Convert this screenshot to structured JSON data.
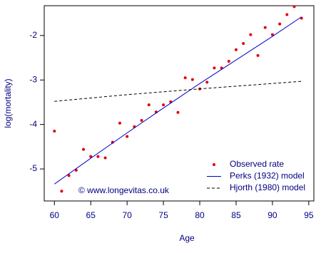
{
  "chart_data": {
    "type": "line",
    "xlabel": "Age",
    "ylabel": "log(mortality)",
    "annotation": "© www.longevitas.co.uk",
    "xlim": [
      58.6,
      95.7
    ],
    "ylim": [
      -5.72,
      -1.33
    ],
    "xticks": [
      60,
      65,
      70,
      75,
      80,
      85,
      90,
      95
    ],
    "yticks": [
      -5,
      -4,
      -3,
      -2
    ],
    "legend": "bottomright",
    "axis_color": "#000080",
    "series": [
      {
        "name": "Observed rate",
        "style": "points",
        "color": "#e00000",
        "x": [
          60,
          61,
          62,
          63,
          64,
          65,
          66,
          67,
          68,
          69,
          70,
          71,
          72,
          73,
          74,
          75,
          76,
          77,
          78,
          79,
          80,
          81,
          82,
          83,
          84,
          85,
          86,
          87,
          88,
          89,
          90,
          91,
          92,
          93,
          94
        ],
        "values": [
          -4.15,
          -5.5,
          -5.15,
          -5.03,
          -4.56,
          -4.72,
          -4.72,
          -4.75,
          -4.4,
          -3.97,
          -4.27,
          -4.05,
          -3.91,
          -3.56,
          -3.72,
          -3.56,
          -3.49,
          -3.73,
          -2.95,
          -2.99,
          -3.2,
          -3.05,
          -2.73,
          -2.73,
          -2.58,
          -2.32,
          -2.18,
          -1.98,
          -2.45,
          -1.82,
          -1.98,
          -1.74,
          -1.53,
          -1.35,
          -1.61
        ]
      },
      {
        "name": "Perks (1932) model",
        "style": "solid",
        "color": "#0000cc",
        "x": [
          60,
          65,
          70,
          75,
          80,
          85,
          90,
          94
        ],
        "values": [
          -5.34,
          -4.76,
          -4.19,
          -3.63,
          -3.08,
          -2.55,
          -2.02,
          -1.58
        ]
      },
      {
        "name": "Hjorth (1980) model",
        "style": "dashed",
        "color": "#000000",
        "x": [
          60,
          70,
          80,
          94
        ],
        "values": [
          -3.48,
          -3.33,
          -3.2,
          -3.03
        ]
      }
    ]
  }
}
